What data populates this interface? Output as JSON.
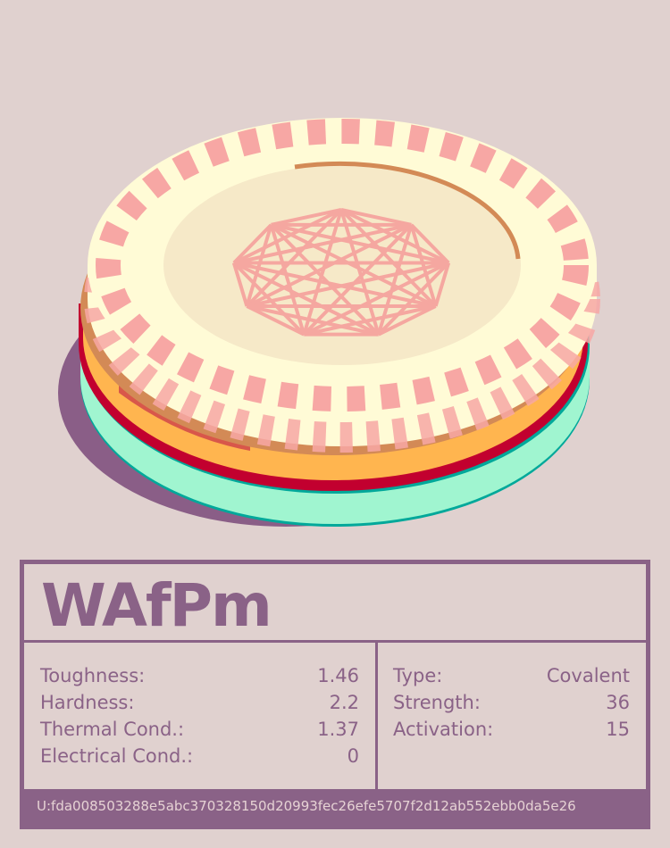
{
  "card": {
    "title": "WAfPm",
    "left_stats": [
      {
        "label": "Toughness:",
        "value": "1.46"
      },
      {
        "label": "Hardness:",
        "value": "2.2"
      },
      {
        "label": "Thermal Cond.:",
        "value": "1.37"
      },
      {
        "label": "Electrical Cond.:",
        "value": "0"
      }
    ],
    "right_stats": [
      {
        "label": "Type:",
        "value": "Covalent"
      },
      {
        "label": "Strength:",
        "value": "36"
      },
      {
        "label": "Activation:",
        "value": "15"
      }
    ],
    "footer_id": "U:fda008503288e5abc370328150d20993fec26efe5707f2d12ab552ebb0da5e26"
  },
  "colors": {
    "background": "#e0d1cf",
    "accent": "#8a6287",
    "coin_top": "#fffbd6",
    "stripe": "#f7a7a4",
    "layer_orange": "#ffb54f",
    "layer_red": "#c2002f",
    "layer_teal": "#a0f5d0"
  }
}
